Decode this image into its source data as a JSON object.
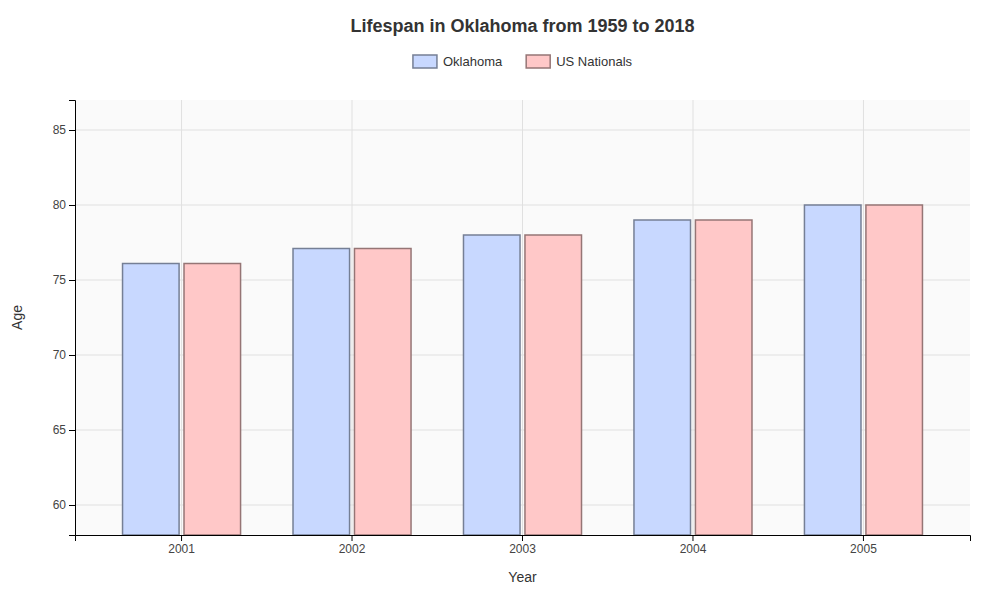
{
  "chart_data": {
    "type": "bar",
    "title": "Lifespan in Oklahoma from 1959 to 2018",
    "x_label": "Year",
    "y_label": "Age",
    "categories": [
      "2001",
      "2002",
      "2003",
      "2004",
      "2005"
    ],
    "series": [
      {
        "name": "Oklahoma",
        "color": "#c8d8ff",
        "values": [
          76.1,
          77.1,
          78.0,
          79.0,
          80.0
        ]
      },
      {
        "name": "US Nationals",
        "color": "#ffc8c8",
        "values": [
          76.1,
          77.1,
          78.0,
          79.0,
          80.0
        ]
      }
    ],
    "ylim": [
      58,
      87
    ],
    "yticks": [
      60,
      65,
      70,
      75,
      80,
      85
    ],
    "grid": true,
    "legend": "top"
  }
}
